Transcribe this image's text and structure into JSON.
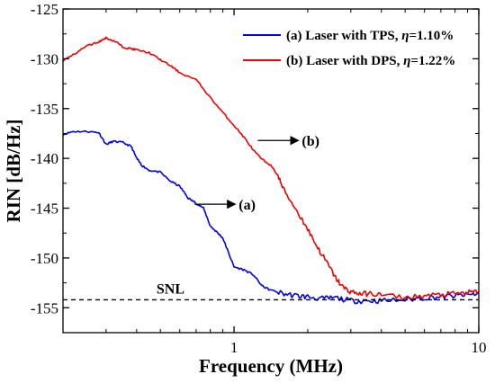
{
  "chart_data": {
    "type": "line",
    "xlabel": "Frequency (MHz)",
    "ylabel": "RIN [dB/Hz]",
    "x_scale": "log",
    "xlim": [
      0.2,
      10
    ],
    "ylim": [
      -157.5,
      -125
    ],
    "x_ticks": [
      {
        "value": 1,
        "label": "1"
      },
      {
        "value": 10,
        "label": "10"
      }
    ],
    "y_ticks": [
      {
        "value": -125,
        "label": "-125"
      },
      {
        "value": -130,
        "label": "-130"
      },
      {
        "value": -135,
        "label": "-135"
      },
      {
        "value": -140,
        "label": "-140"
      },
      {
        "value": -145,
        "label": "-145"
      },
      {
        "value": -150,
        "label": "-150"
      },
      {
        "value": -155,
        "label": "-155"
      }
    ],
    "legend_position": "top-right",
    "grid": false,
    "series": [
      {
        "name": "(a) Laser with TPS, η=1.10%",
        "legend_prefix": "(a) Laser with TPS, ",
        "legend_eta": "η",
        "legend_suffix": "=1.10%",
        "color": "#0000ee",
        "x": [
          0.2,
          0.22,
          0.25,
          0.28,
          0.3,
          0.32,
          0.35,
          0.38,
          0.4,
          0.42,
          0.45,
          0.5,
          0.55,
          0.6,
          0.65,
          0.7,
          0.75,
          0.8,
          0.85,
          0.9,
          0.95,
          1.0,
          1.1,
          1.2,
          1.3,
          1.4,
          1.6,
          1.8,
          2.0,
          2.3,
          2.6,
          3.0,
          3.5,
          4.0,
          5.0,
          6.0,
          7.0,
          8.0,
          9.0,
          10.0
        ],
        "y": [
          -137.6,
          -137.3,
          -137.3,
          -137.4,
          -138.6,
          -138.3,
          -138.4,
          -138.8,
          -140.0,
          -140.7,
          -141.2,
          -141.4,
          -142.3,
          -142.8,
          -144.0,
          -144.5,
          -145.0,
          -146.8,
          -147.4,
          -148.0,
          -149.5,
          -150.9,
          -151.2,
          -151.7,
          -152.8,
          -153.2,
          -153.6,
          -153.8,
          -153.9,
          -154.1,
          -154.0,
          -154.3,
          -154.3,
          -154.3,
          -154.2,
          -154.0,
          -153.9,
          -153.8,
          -153.7,
          -153.6
        ]
      },
      {
        "name": "(b) Laser with DPS, η=1.22%",
        "legend_prefix": "(b) Laser with DPS, ",
        "legend_eta": "η",
        "legend_suffix": "=1.22%",
        "color": "#ee0000",
        "x": [
          0.2,
          0.22,
          0.25,
          0.28,
          0.3,
          0.33,
          0.35,
          0.38,
          0.4,
          0.45,
          0.5,
          0.55,
          0.6,
          0.7,
          0.8,
          0.9,
          1.0,
          1.1,
          1.2,
          1.3,
          1.4,
          1.5,
          1.6,
          1.8,
          2.0,
          2.2,
          2.4,
          2.6,
          2.8,
          3.0,
          3.3,
          3.6,
          4.0,
          5.0,
          6.0,
          7.0,
          8.0,
          9.0,
          10.0
        ],
        "y": [
          -130.2,
          -129.6,
          -128.7,
          -128.3,
          -127.9,
          -128.3,
          -128.8,
          -129.0,
          -129.1,
          -129.4,
          -130.1,
          -130.7,
          -131.4,
          -132.1,
          -133.9,
          -135.4,
          -136.7,
          -137.9,
          -139.2,
          -140.1,
          -140.6,
          -141.6,
          -143.2,
          -145.2,
          -147.1,
          -149.0,
          -150.5,
          -152.0,
          -153.0,
          -153.4,
          -153.6,
          -153.6,
          -153.7,
          -154.0,
          -153.8,
          -153.7,
          -153.6,
          -153.5,
          -153.4
        ]
      }
    ],
    "reference_line": {
      "label": "SNL",
      "y": -154.2,
      "style": "dashed"
    },
    "annotations": [
      {
        "text": "(a)",
        "arrow_to": {
          "x": 0.69,
          "y": -144.6
        }
      },
      {
        "text": "(b)",
        "arrow_to": {
          "x": 1.25,
          "y": -138.2
        }
      }
    ]
  }
}
